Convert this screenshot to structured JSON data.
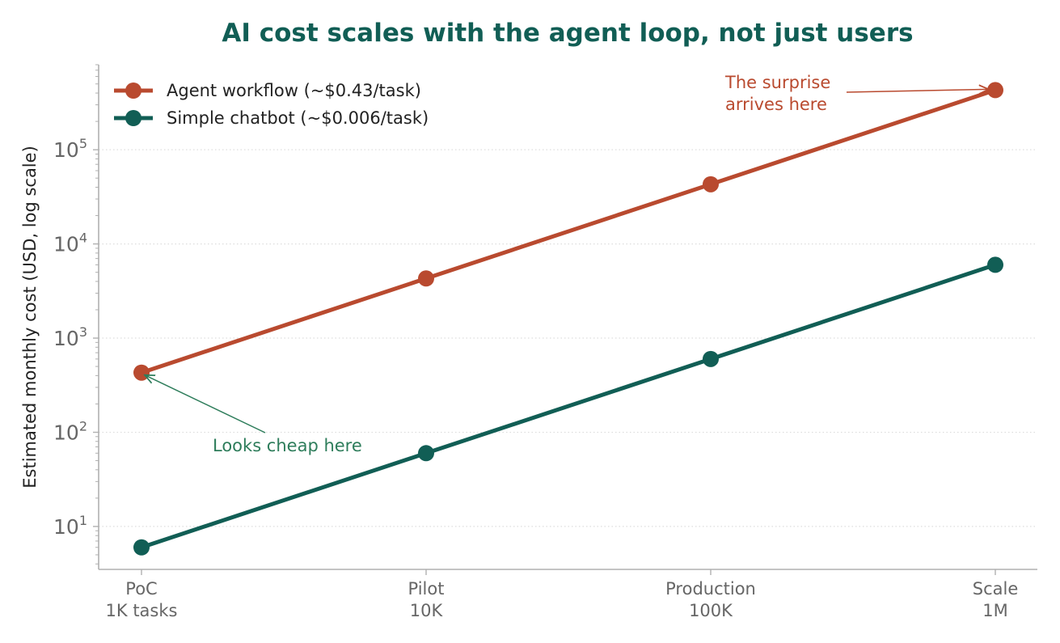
{
  "chart_data": {
    "type": "line",
    "title": "AI cost scales with the agent loop, not just users",
    "xlabel": "",
    "ylabel": "Estimated monthly cost (USD, log scale)",
    "yscale": "log",
    "ylim": [
      3.5,
      800000
    ],
    "grid": "horizontal dotted at major ticks",
    "legend_position": "top-left",
    "categories": [
      {
        "line1": "PoC",
        "line2": "1K tasks"
      },
      {
        "line1": "Pilot",
        "line2": "10K"
      },
      {
        "line1": "Production",
        "line2": "100K"
      },
      {
        "line1": "Scale",
        "line2": "1M"
      }
    ],
    "yticks": [
      {
        "base": "10",
        "exp": "1",
        "value": 10
      },
      {
        "base": "10",
        "exp": "2",
        "value": 100
      },
      {
        "base": "10",
        "exp": "3",
        "value": 1000
      },
      {
        "base": "10",
        "exp": "4",
        "value": 10000
      },
      {
        "base": "10",
        "exp": "5",
        "value": 100000
      }
    ],
    "series": [
      {
        "name": "Agent workflow (~$0.43/task)",
        "color": "#b94a2f",
        "values": [
          430,
          4300,
          43000,
          430000
        ]
      },
      {
        "name": "Simple chatbot (~$0.006/task)",
        "color": "#115e55",
        "values": [
          6,
          60,
          600,
          6000
        ]
      }
    ],
    "annotations": [
      {
        "lines": [
          "The surprise",
          "arrives here"
        ],
        "color": "#b94a2f",
        "series": 0,
        "point": 3
      },
      {
        "lines": [
          "Looks cheap here"
        ],
        "color": "#2e7d5b",
        "series": 0,
        "point": 0
      }
    ],
    "colors": {
      "title": "#115e55",
      "axis": "#b0b0b0",
      "tick_label": "#666666",
      "grid": "#dddddd",
      "label": "#222222"
    }
  }
}
